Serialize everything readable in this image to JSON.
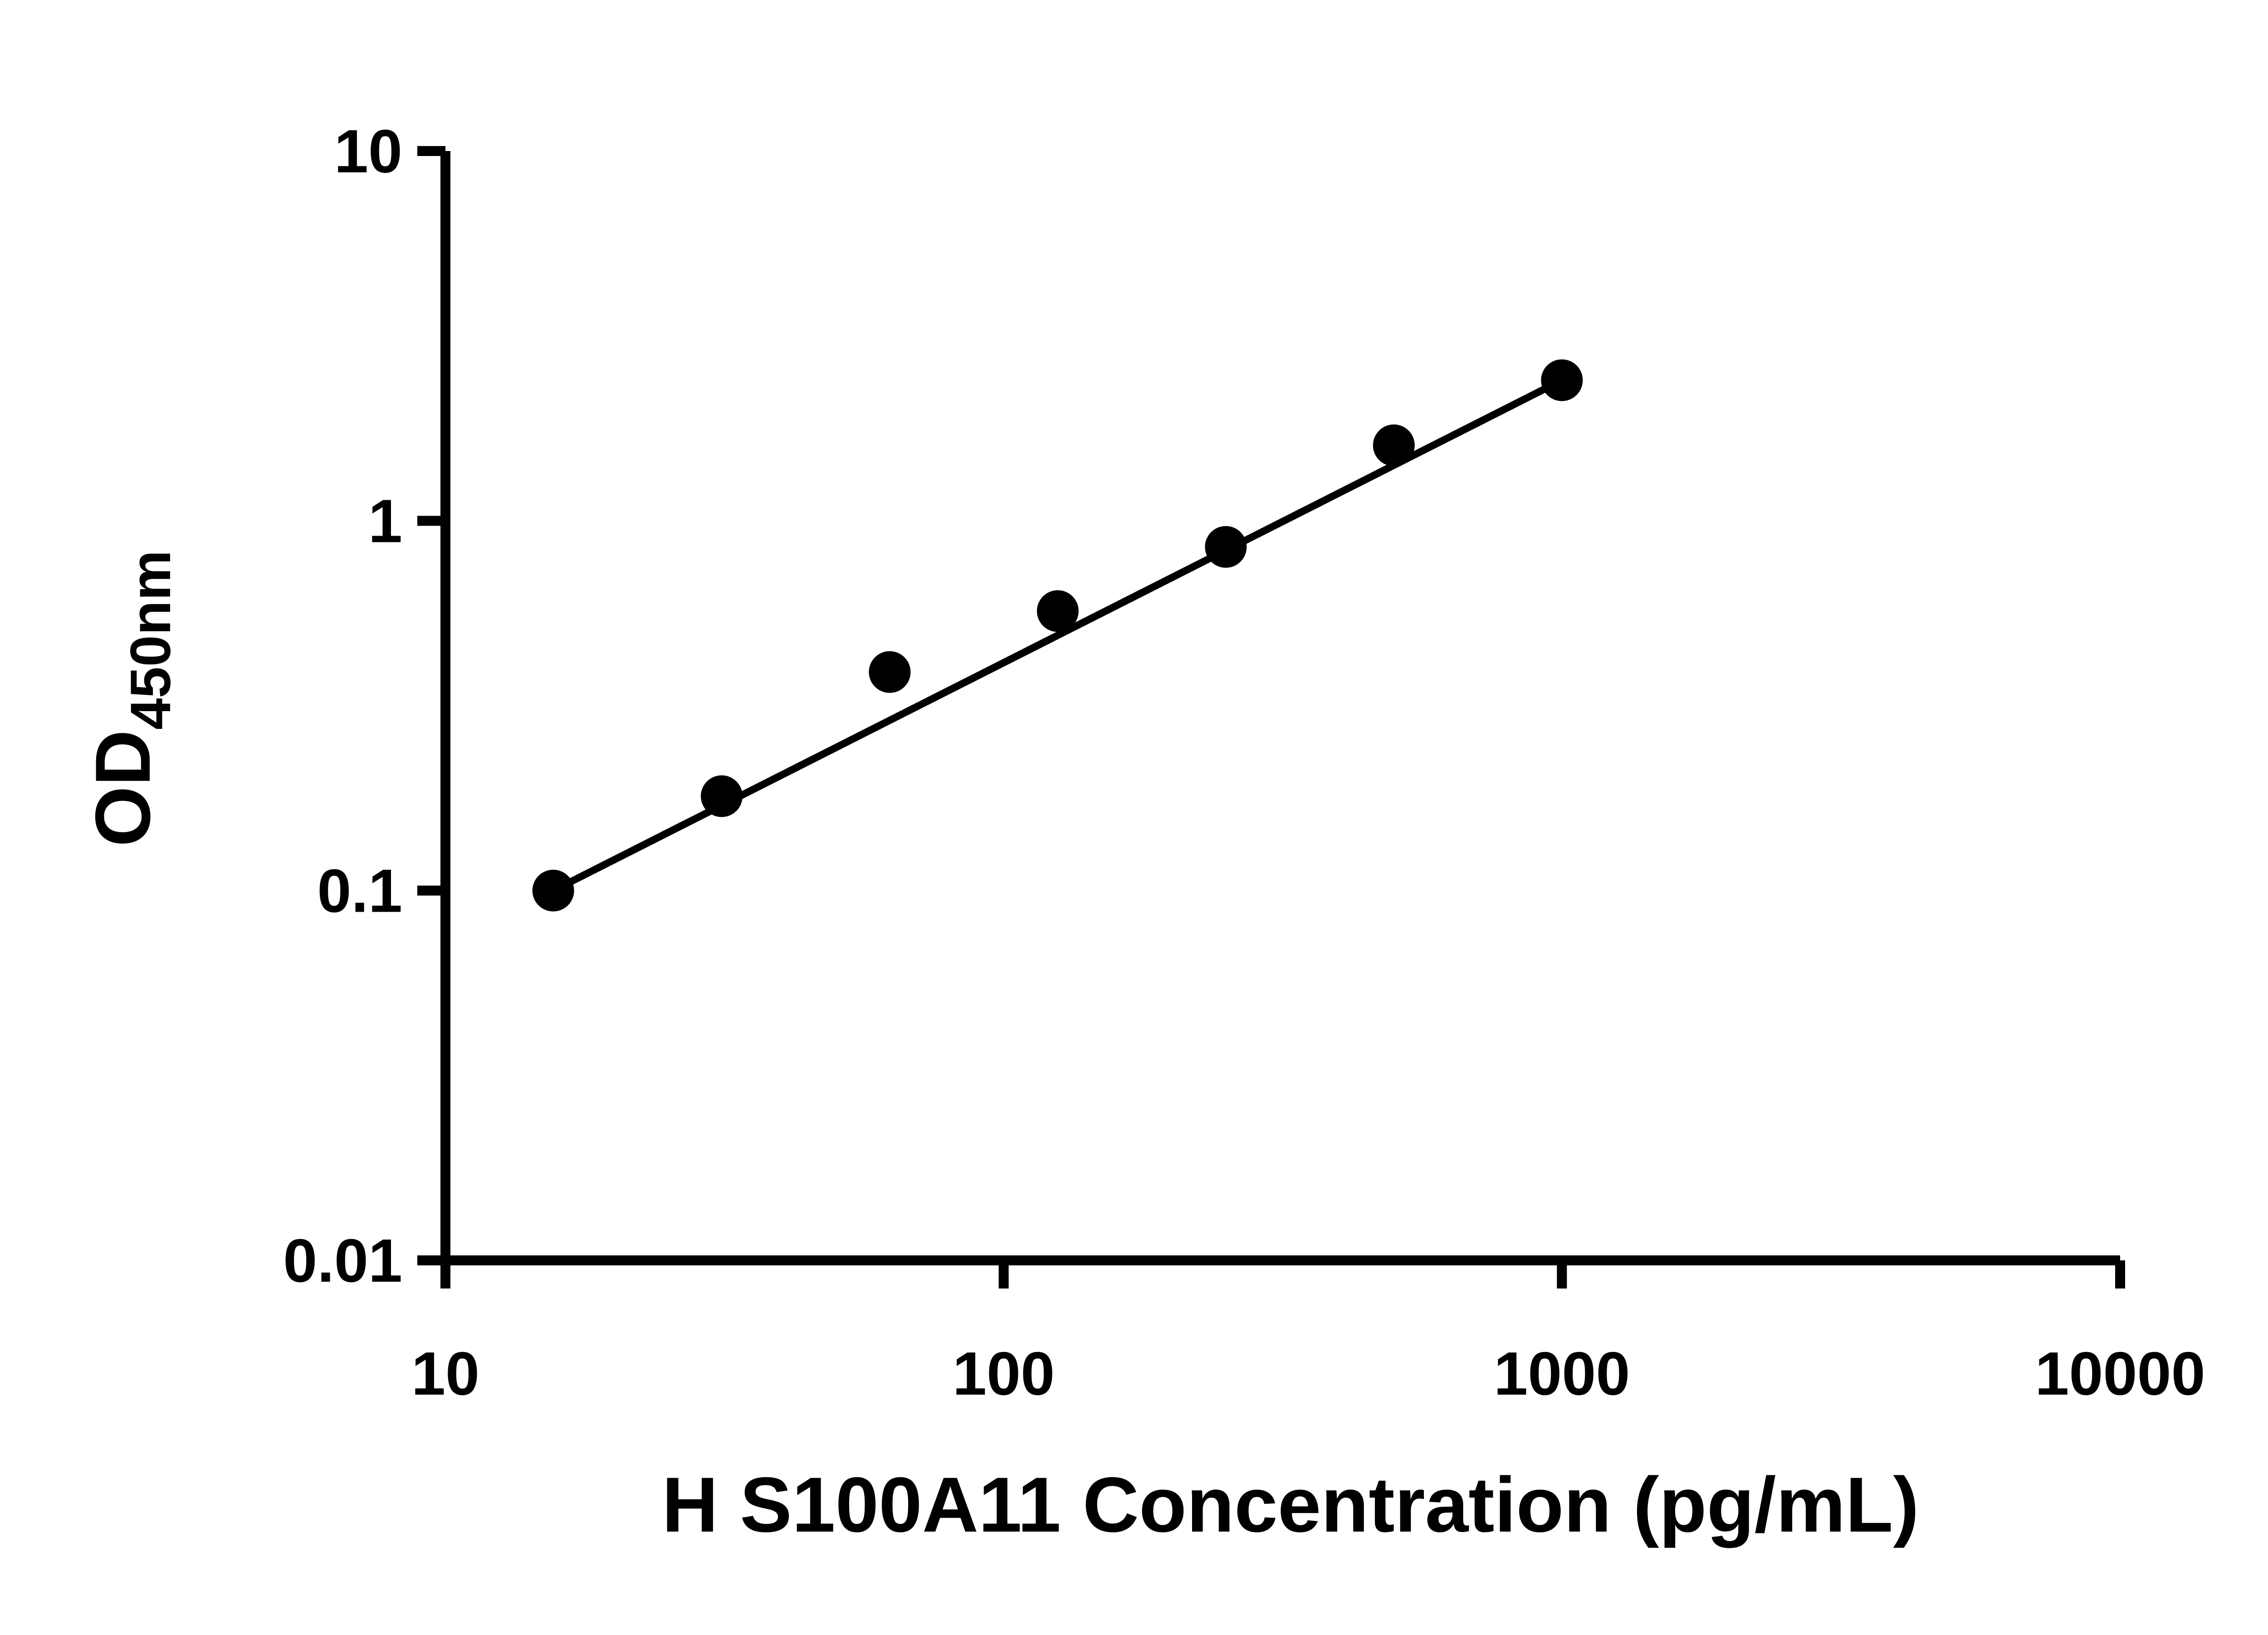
{
  "chart_data": {
    "type": "scatter",
    "title": "",
    "xlabel": "H S100A11 Concentration (pg/mL)",
    "ylabel_main": "OD",
    "ylabel_sub": "450nm",
    "xscale": "log",
    "yscale": "log",
    "xlim": [
      10,
      10000
    ],
    "ylim": [
      0.01,
      10
    ],
    "x_ticks": [
      10,
      100,
      1000,
      10000
    ],
    "x_tick_labels": [
      "10",
      "100",
      "1000",
      "10000"
    ],
    "y_ticks": [
      0.01,
      0.1,
      1,
      10
    ],
    "y_tick_labels": [
      "0.01",
      "0.1",
      "1",
      "10"
    ],
    "grid": false,
    "legend": null,
    "x": [
      15.6,
      31.25,
      62.5,
      125,
      250,
      500,
      1000
    ],
    "y": [
      0.1,
      0.18,
      0.39,
      0.57,
      0.85,
      1.6,
      2.4
    ],
    "trendline": {
      "x1": 15.6,
      "y1": 0.1,
      "x2": 1000,
      "y2": 2.4
    },
    "marker_color": "#000000",
    "line_color": "#000000",
    "axis_color": "#000000",
    "background": "#ffffff"
  }
}
